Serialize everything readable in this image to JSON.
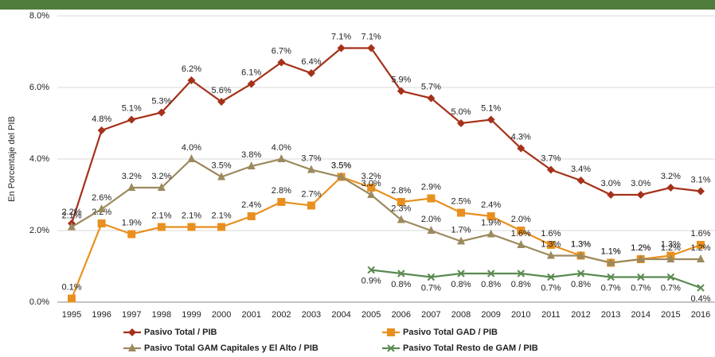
{
  "chart_data": {
    "type": "line",
    "y_label": "En Porcentaje del PIB",
    "categories": [
      "1995",
      "1996",
      "1997",
      "1998",
      "1999",
      "2000",
      "2001",
      "2002",
      "2003",
      "2004",
      "2005",
      "2006",
      "2007",
      "2008",
      "2009",
      "2010",
      "2011",
      "2012",
      "2013",
      "2014",
      "2015",
      "2016"
    ],
    "ylim": [
      0,
      8
    ],
    "yticks": [
      {
        "value": 0,
        "label": "0.0%"
      },
      {
        "value": 2,
        "label": "2.0%"
      },
      {
        "value": 4,
        "label": "4.0%"
      },
      {
        "value": 6,
        "label": "6.0%"
      },
      {
        "value": 8,
        "label": "8.0%"
      }
    ],
    "grid": true,
    "legend": "bottom",
    "series": [
      {
        "name": "Pasivo Total / PIB",
        "color": "#a5311a",
        "marker": "diamond",
        "values": [
          2.2,
          4.8,
          5.1,
          5.3,
          6.2,
          5.6,
          6.1,
          6.7,
          6.4,
          7.1,
          7.1,
          5.9,
          5.7,
          5.0,
          5.1,
          4.3,
          3.7,
          3.4,
          3.0,
          3.0,
          3.2,
          3.1
        ],
        "value_labels": [
          "2.2%",
          "4.8%",
          "5.1%",
          "5.3%",
          "6.2%",
          "5.6%",
          "6.1%",
          "6.7%",
          "6.4%",
          "7.1%",
          "7.1%",
          "5.9%",
          "5.7%",
          "5.0%",
          "5.1%",
          "4.3%",
          "3.7%",
          "3.4%",
          "3.0%",
          "3.0%",
          "3.2%",
          "3.1%"
        ]
      },
      {
        "name": "Pasivo Total GAD / PIB",
        "color": "#e8901f",
        "marker": "square",
        "values": [
          0.1,
          2.2,
          1.9,
          2.1,
          2.1,
          2.1,
          2.4,
          2.8,
          2.7,
          3.5,
          3.2,
          2.8,
          2.9,
          2.5,
          2.4,
          2.0,
          1.6,
          1.3,
          1.1,
          1.2,
          1.3,
          1.6
        ],
        "value_labels": [
          "0.1%",
          "2.2%",
          "1.9%",
          "2.1%",
          "2.1%",
          "2.1%",
          "2.4%",
          "2.8%",
          "2.7%",
          "3.5%",
          "3.2%",
          "2.8%",
          "2.9%",
          "2.5%",
          "2.4%",
          "2.0%",
          "1.6%",
          "1.3%",
          "1.1%",
          "1.2%",
          "1.3%",
          "1.6%"
        ]
      },
      {
        "name": "Pasivo Total GAM Capitales y El Alto / PIB",
        "color": "#9c8a5e",
        "marker": "triangle",
        "values": [
          2.1,
          2.6,
          3.2,
          3.2,
          4.0,
          3.5,
          3.8,
          4.0,
          3.7,
          3.5,
          3.0,
          2.3,
          2.0,
          1.7,
          1.9,
          1.6,
          1.3,
          1.3,
          1.1,
          1.2,
          1.2,
          1.2
        ],
        "value_labels": [
          "2.1%",
          "2.6%",
          "3.2%",
          "3.2%",
          "4.0%",
          "3.5%",
          "3.8%",
          "4.0%",
          "3.7%",
          "3.5%",
          "3.0%",
          "2.3%",
          "2.0%",
          "1.7%",
          "1.9%",
          "1.6%",
          "1.3%",
          "1.3%",
          "1.1%",
          "1.2%",
          "1.2%",
          "1.2%"
        ]
      },
      {
        "name": "Pasivo Total Resto de GAM / PIB",
        "color": "#5a8a50",
        "marker": "x",
        "values": [
          null,
          null,
          null,
          null,
          null,
          null,
          null,
          null,
          null,
          null,
          0.9,
          0.8,
          0.7,
          0.8,
          0.8,
          0.8,
          0.7,
          0.8,
          0.7,
          0.7,
          0.7,
          0.4
        ],
        "value_labels": [
          null,
          null,
          null,
          null,
          null,
          null,
          null,
          null,
          null,
          null,
          "0.9%",
          "0.8%",
          "0.7%",
          "0.8%",
          "0.8%",
          "0.8%",
          "0.7%",
          "0.8%",
          "0.7%",
          "0.7%",
          "0.7%",
          "0.4%"
        ]
      }
    ]
  }
}
